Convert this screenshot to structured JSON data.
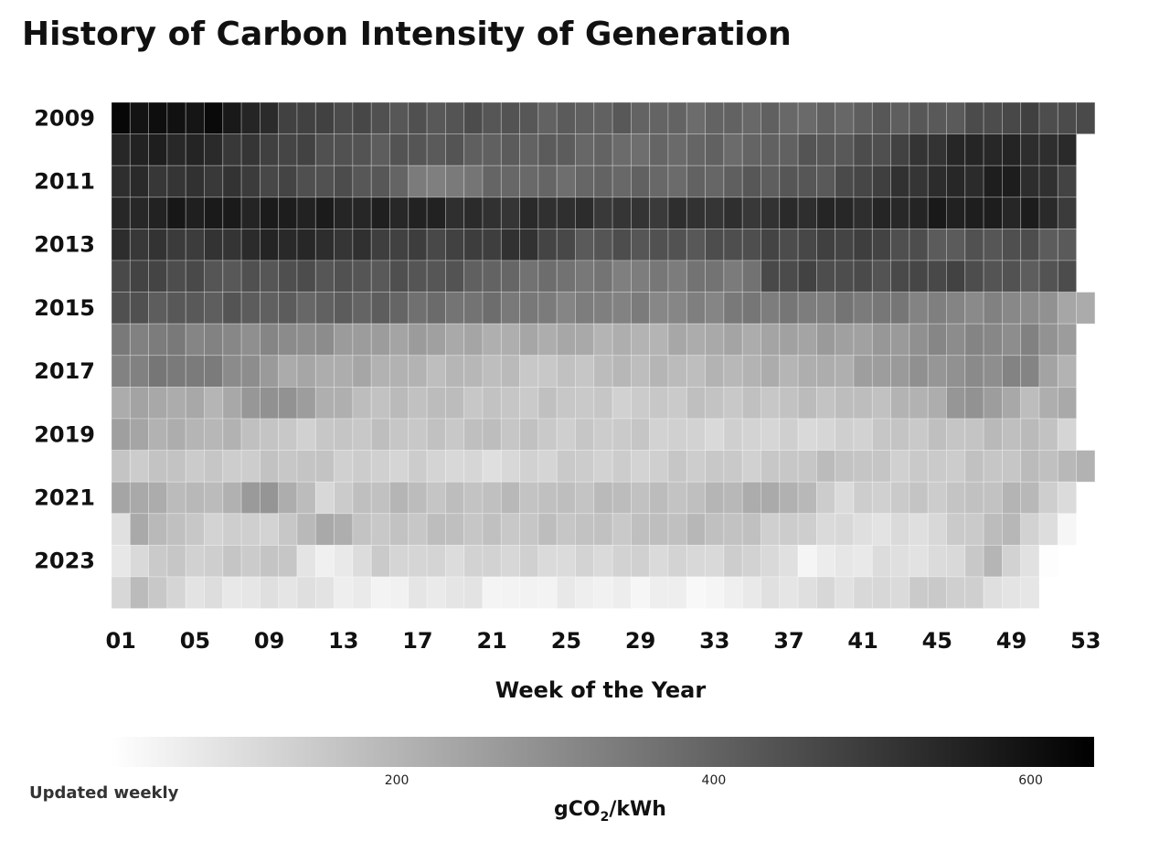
{
  "chart_data": {
    "type": "heatmap",
    "title": "History of Carbon Intensity of Generation",
    "xlabel": "Week of the Year",
    "ylabel": "",
    "x_ticks": [
      "01",
      "05",
      "09",
      "13",
      "17",
      "21",
      "25",
      "29",
      "33",
      "37",
      "41",
      "45",
      "49",
      "53"
    ],
    "y_ticks": [
      "2009",
      "2011",
      "2013",
      "2015",
      "2017",
      "2019",
      "2021",
      "2023"
    ],
    "years": [
      2009,
      2010,
      2011,
      2012,
      2013,
      2014,
      2015,
      2016,
      2017,
      2018,
      2019,
      2020,
      2021,
      2022,
      2023,
      2024
    ],
    "weeks": [
      1,
      53
    ],
    "colorbar": {
      "label_main": "gCO",
      "label_sub": "2",
      "label_tail": "/kWh",
      "ticks": [
        "200",
        "400",
        "600"
      ],
      "range": [
        20,
        640
      ],
      "colors": [
        "#ffffff",
        "#000000"
      ]
    },
    "footnote": "Updated weekly",
    "anchors": {
      "2009": [
        [
          1,
          610
        ],
        [
          6,
          600
        ],
        [
          10,
          500
        ],
        [
          15,
          440
        ],
        [
          20,
          440
        ],
        [
          26,
          410
        ],
        [
          30,
          400
        ],
        [
          35,
          390
        ],
        [
          40,
          400
        ],
        [
          45,
          430
        ],
        [
          50,
          470
        ],
        [
          53,
          460
        ]
      ],
      "2010": [
        [
          1,
          560
        ],
        [
          6,
          540
        ],
        [
          10,
          470
        ],
        [
          15,
          430
        ],
        [
          20,
          420
        ],
        [
          26,
          400
        ],
        [
          30,
          380
        ],
        [
          35,
          400
        ],
        [
          40,
          430
        ],
        [
          45,
          520
        ],
        [
          48,
          560
        ],
        [
          52,
          520
        ]
      ],
      "2011": [
        [
          1,
          530
        ],
        [
          6,
          510
        ],
        [
          10,
          470
        ],
        [
          15,
          420
        ],
        [
          18,
          330
        ],
        [
          22,
          390
        ],
        [
          26,
          390
        ],
        [
          30,
          390
        ],
        [
          35,
          410
        ],
        [
          40,
          450
        ],
        [
          45,
          540
        ],
        [
          49,
          560
        ],
        [
          52,
          490
        ]
      ],
      "2012": [
        [
          1,
          540
        ],
        [
          6,
          580
        ],
        [
          10,
          560
        ],
        [
          15,
          560
        ],
        [
          20,
          530
        ],
        [
          26,
          520
        ],
        [
          30,
          510
        ],
        [
          35,
          520
        ],
        [
          40,
          540
        ],
        [
          45,
          560
        ],
        [
          50,
          570
        ],
        [
          52,
          500
        ]
      ],
      "2013": [
        [
          1,
          520
        ],
        [
          6,
          500
        ],
        [
          10,
          560
        ],
        [
          15,
          490
        ],
        [
          20,
          480
        ],
        [
          23,
          520
        ],
        [
          26,
          430
        ],
        [
          30,
          440
        ],
        [
          35,
          450
        ],
        [
          40,
          490
        ],
        [
          45,
          430
        ],
        [
          50,
          440
        ],
        [
          52,
          420
        ]
      ],
      "2014": [
        [
          1,
          480
        ],
        [
          6,
          440
        ],
        [
          10,
          440
        ],
        [
          15,
          440
        ],
        [
          20,
          420
        ],
        [
          24,
          360
        ],
        [
          30,
          340
        ],
        [
          35,
          360
        ],
        [
          36,
          470
        ],
        [
          40,
          450
        ],
        [
          45,
          470
        ],
        [
          50,
          430
        ],
        [
          52,
          440
        ]
      ],
      "2015": [
        [
          1,
          440
        ],
        [
          6,
          420
        ],
        [
          10,
          410
        ],
        [
          15,
          400
        ],
        [
          20,
          360
        ],
        [
          26,
          330
        ],
        [
          30,
          320
        ],
        [
          35,
          340
        ],
        [
          40,
          350
        ],
        [
          45,
          330
        ],
        [
          50,
          300
        ],
        [
          53,
          230
        ]
      ],
      "2016": [
        [
          1,
          340
        ],
        [
          6,
          320
        ],
        [
          10,
          300
        ],
        [
          15,
          260
        ],
        [
          20,
          230
        ],
        [
          26,
          220
        ],
        [
          30,
          210
        ],
        [
          35,
          240
        ],
        [
          40,
          250
        ],
        [
          45,
          300
        ],
        [
          50,
          320
        ],
        [
          52,
          260
        ]
      ],
      "2017": [
        [
          1,
          320
        ],
        [
          4,
          360
        ],
        [
          6,
          330
        ],
        [
          10,
          240
        ],
        [
          15,
          210
        ],
        [
          20,
          190
        ],
        [
          23,
          160
        ],
        [
          30,
          190
        ],
        [
          35,
          200
        ],
        [
          40,
          230
        ],
        [
          45,
          290
        ],
        [
          50,
          310
        ],
        [
          52,
          200
        ]
      ],
      "2018": [
        [
          1,
          240
        ],
        [
          6,
          210
        ],
        [
          9,
          300
        ],
        [
          12,
          220
        ],
        [
          15,
          180
        ],
        [
          20,
          170
        ],
        [
          26,
          150
        ],
        [
          30,
          150
        ],
        [
          35,
          170
        ],
        [
          40,
          170
        ],
        [
          45,
          220
        ],
        [
          47,
          290
        ],
        [
          50,
          200
        ],
        [
          52,
          220
        ]
      ],
      "2019": [
        [
          1,
          240
        ],
        [
          6,
          200
        ],
        [
          10,
          150
        ],
        [
          15,
          160
        ],
        [
          20,
          170
        ],
        [
          26,
          150
        ],
        [
          30,
          140
        ],
        [
          35,
          120
        ],
        [
          40,
          130
        ],
        [
          45,
          170
        ],
        [
          50,
          180
        ],
        [
          52,
          140
        ]
      ],
      "2020": [
        [
          1,
          160
        ],
        [
          6,
          150
        ],
        [
          10,
          160
        ],
        [
          15,
          140
        ],
        [
          20,
          110
        ],
        [
          26,
          140
        ],
        [
          30,
          140
        ],
        [
          35,
          150
        ],
        [
          40,
          170
        ],
        [
          45,
          140
        ],
        [
          50,
          180
        ],
        [
          53,
          190
        ]
      ],
      "2021": [
        [
          1,
          240
        ],
        [
          6,
          180
        ],
        [
          9,
          280
        ],
        [
          12,
          130
        ],
        [
          16,
          190
        ],
        [
          20,
          170
        ],
        [
          26,
          180
        ],
        [
          30,
          170
        ],
        [
          35,
          210
        ],
        [
          37,
          220
        ],
        [
          40,
          120
        ],
        [
          45,
          160
        ],
        [
          50,
          190
        ],
        [
          52,
          100
        ]
      ],
      "2022": [
        [
          1,
          110
        ],
        [
          2,
          220
        ],
        [
          5,
          140
        ],
        [
          10,
          140
        ],
        [
          12,
          230
        ],
        [
          15,
          160
        ],
        [
          20,
          170
        ],
        [
          26,
          160
        ],
        [
          30,
          180
        ],
        [
          35,
          170
        ],
        [
          40,
          100
        ],
        [
          45,
          110
        ],
        [
          49,
          200
        ],
        [
          52,
          40
        ]
      ],
      "2023": [
        [
          1,
          60
        ],
        [
          3,
          160
        ],
        [
          6,
          140
        ],
        [
          10,
          160
        ],
        [
          12,
          50
        ],
        [
          15,
          130
        ],
        [
          20,
          120
        ],
        [
          26,
          120
        ],
        [
          30,
          120
        ],
        [
          35,
          130
        ],
        [
          38,
          60
        ],
        [
          40,
          80
        ],
        [
          45,
          100
        ],
        [
          48,
          190
        ],
        [
          50,
          80
        ],
        [
          51,
          20
        ]
      ],
      "2024": [
        [
          1,
          120
        ],
        [
          2,
          200
        ],
        [
          3,
          140
        ],
        [
          5,
          90
        ],
        [
          10,
          90
        ],
        [
          15,
          60
        ],
        [
          20,
          80
        ],
        [
          22,
          50
        ],
        [
          26,
          60
        ],
        [
          30,
          60
        ],
        [
          33,
          30
        ],
        [
          35,
          90
        ],
        [
          40,
          100
        ],
        [
          45,
          150
        ],
        [
          47,
          120
        ],
        [
          50,
          80
        ]
      ]
    },
    "last_week": {
      "2009": 53,
      "2010": 52,
      "2011": 52,
      "2012": 52,
      "2013": 52,
      "2014": 52,
      "2015": 53,
      "2016": 52,
      "2017": 52,
      "2018": 52,
      "2019": 52,
      "2020": 53,
      "2021": 52,
      "2022": 52,
      "2023": 51,
      "2024": 50
    }
  }
}
